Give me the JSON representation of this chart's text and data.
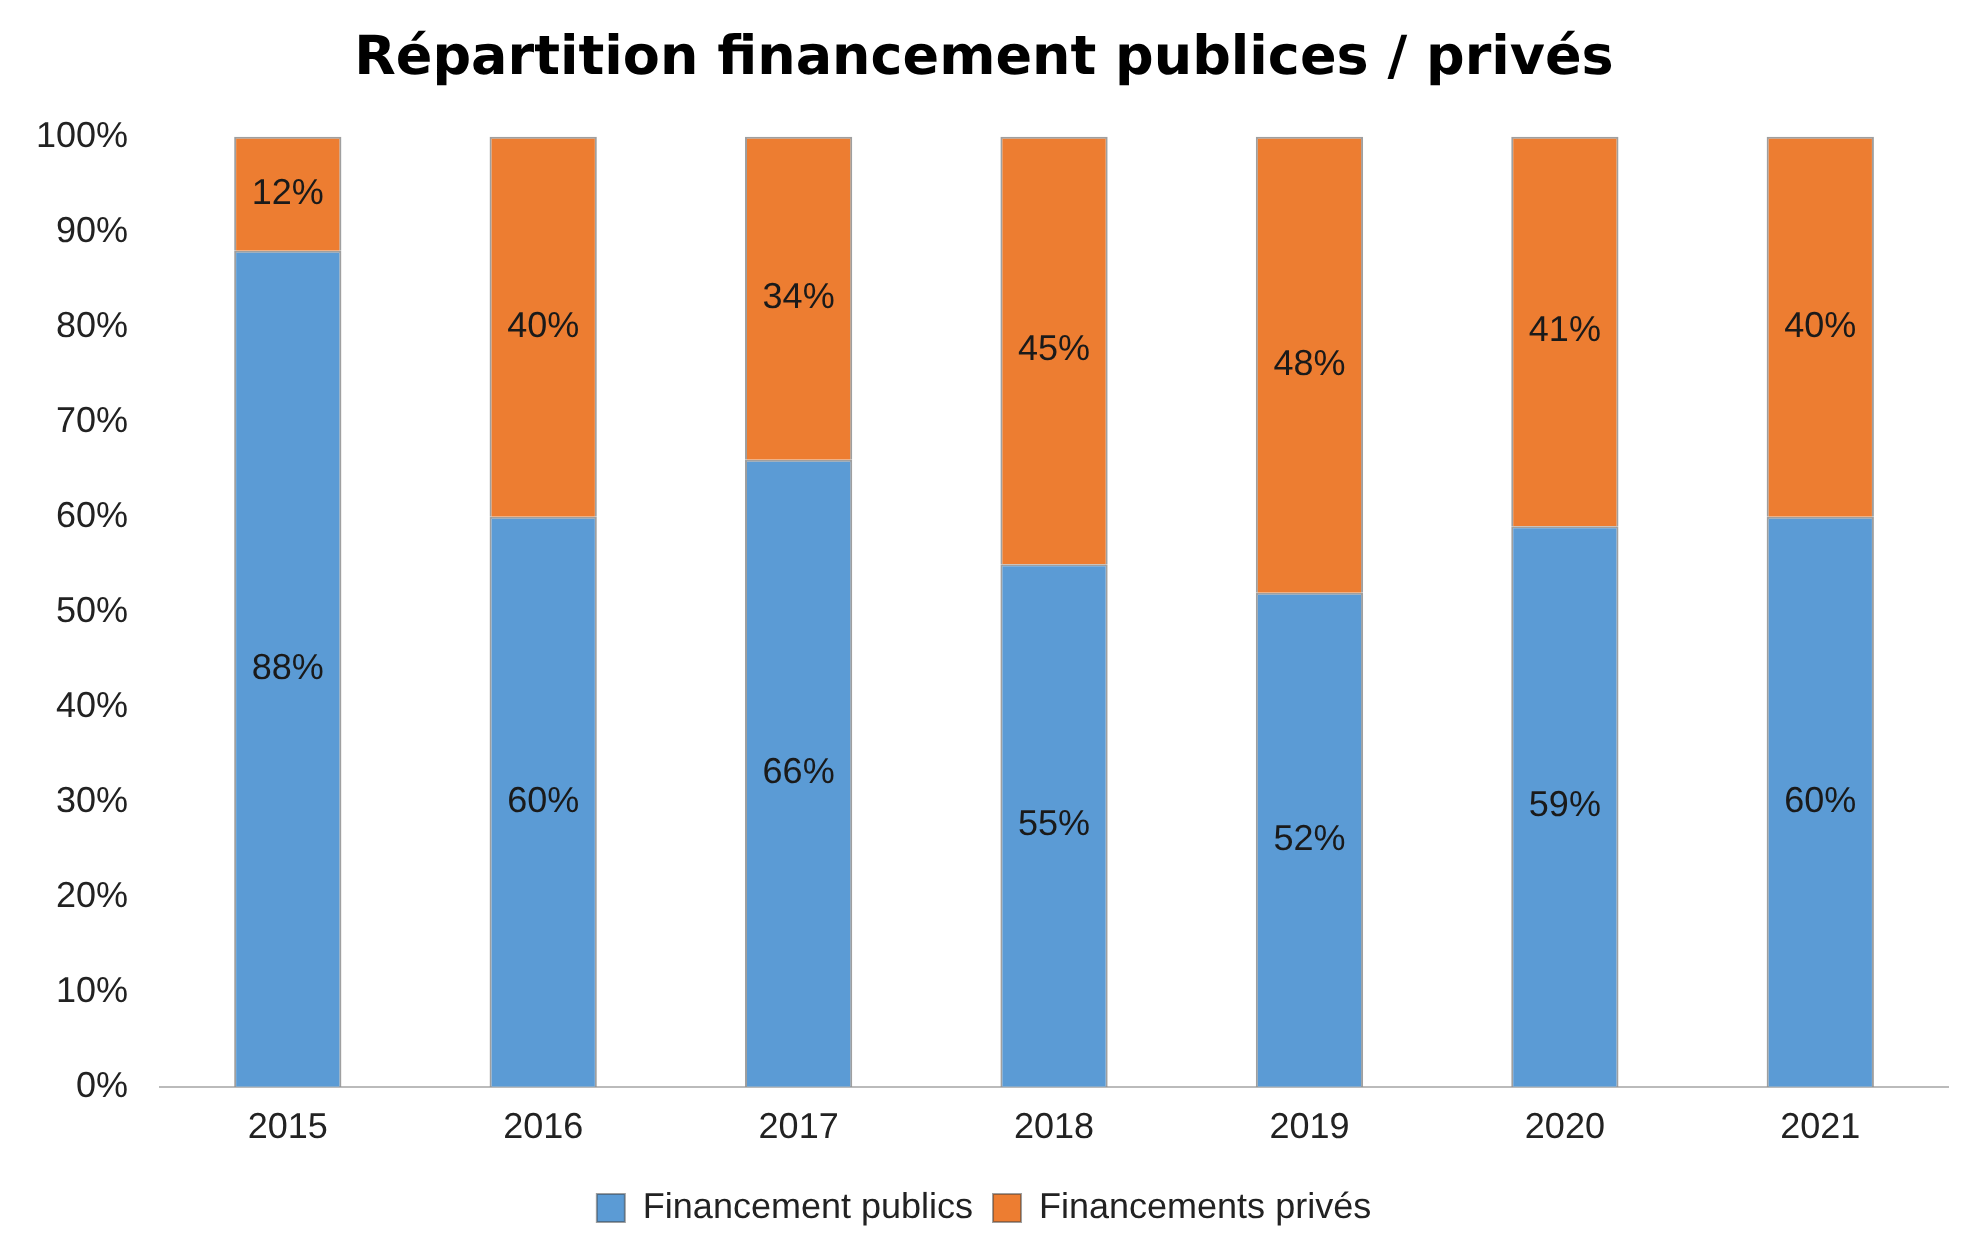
{
  "chart_data": {
    "type": "bar",
    "title": "Répartition financement publices / privés",
    "categories": [
      "2015",
      "2016",
      "2017",
      "2018",
      "2019",
      "2020",
      "2021"
    ],
    "series": [
      {
        "name": "Financement publics",
        "color": "#5b9bd5",
        "values": [
          88,
          60,
          66,
          55,
          52,
          59,
          60
        ],
        "value_labels": [
          "88%",
          "60%",
          "66%",
          "55%",
          "52%",
          "59%",
          "60%"
        ]
      },
      {
        "name": "Financements privés",
        "color": "#ed7d31",
        "values": [
          12,
          40,
          34,
          45,
          48,
          41,
          40
        ],
        "value_labels": [
          "12%",
          "40%",
          "34%",
          "45%",
          "48%",
          "41%",
          "40%"
        ]
      }
    ],
    "stacked": true,
    "ylim": [
      0,
      100
    ],
    "yticks": [
      {
        "value": 0,
        "label": "0%"
      },
      {
        "value": 10,
        "label": "10%"
      },
      {
        "value": 20,
        "label": "20%"
      },
      {
        "value": 30,
        "label": "30%"
      },
      {
        "value": 40,
        "label": "40%"
      },
      {
        "value": 50,
        "label": "50%"
      },
      {
        "value": 60,
        "label": "60%"
      },
      {
        "value": 70,
        "label": "70%"
      },
      {
        "value": 80,
        "label": "80%"
      },
      {
        "value": 90,
        "label": "90%"
      },
      {
        "value": 100,
        "label": "100%"
      }
    ],
    "grid": false,
    "legend": "bottom"
  }
}
